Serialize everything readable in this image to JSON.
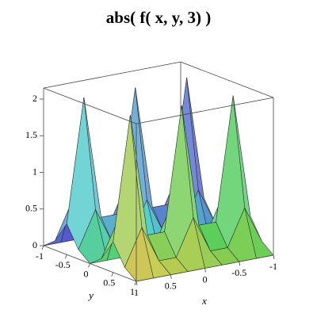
{
  "chart_data": {
    "type": "surface",
    "title": "abs( f( x, y, 3) )",
    "x_label": "x",
    "y_label": "y",
    "x": [
      -1,
      -0.75,
      -0.5,
      -0.25,
      0,
      0.25,
      0.5,
      0.75,
      1
    ],
    "y": [
      -1,
      -0.75,
      -0.5,
      -0.25,
      0,
      0.25,
      0.5,
      0.75,
      1
    ],
    "z": [
      [
        0,
        0,
        0,
        0,
        0,
        0,
        0,
        0,
        0
      ],
      [
        0.13,
        0.63,
        0.13,
        0.13,
        0.63,
        0.13,
        0.13,
        0.63,
        0.13
      ],
      [
        0.42,
        2.1,
        0.42,
        0.42,
        2.1,
        0.42,
        0.42,
        2.1,
        0.42
      ],
      [
        0.13,
        0.63,
        0.13,
        0.13,
        0.63,
        0.13,
        0.13,
        0.63,
        0.13
      ],
      [
        0,
        0,
        0,
        0,
        0,
        0,
        0,
        0,
        0
      ],
      [
        0.13,
        0.63,
        0.13,
        0.13,
        0.63,
        0.13,
        0.13,
        0.63,
        0.13
      ],
      [
        0.42,
        2.1,
        0.42,
        0.42,
        2.1,
        0.42,
        0.42,
        2.1,
        0.42
      ],
      [
        0.13,
        0.63,
        0.13,
        0.13,
        0.63,
        0.13,
        0.13,
        0.63,
        0.13
      ],
      [
        0,
        0,
        0,
        0,
        0,
        0,
        0,
        0,
        0
      ]
    ],
    "xlim": [
      -1,
      1
    ],
    "ylim": [
      -1,
      1
    ],
    "zlim": [
      0,
      2.15
    ],
    "xticks": [
      -1,
      -0.5,
      0,
      0.5,
      1
    ],
    "yticks": [
      -1,
      -0.5,
      0,
      0.5,
      1
    ],
    "zticks": [
      0,
      0.5,
      1,
      1.5,
      2
    ]
  }
}
